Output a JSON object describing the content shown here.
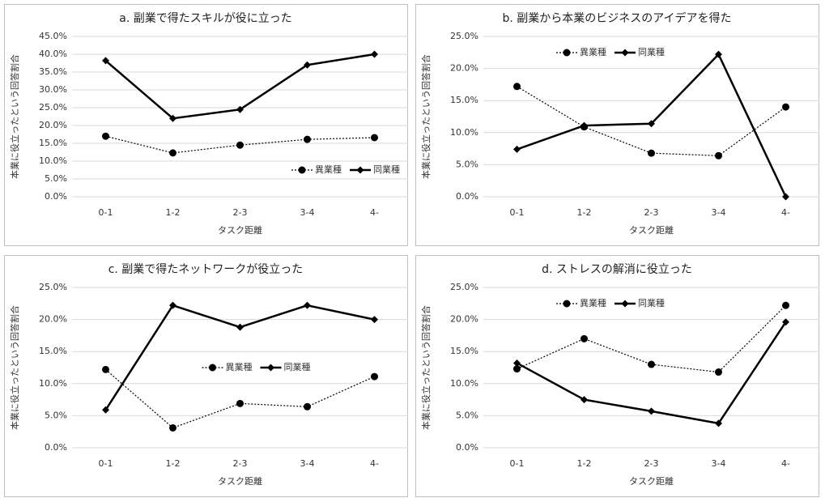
{
  "chart_data": [
    {
      "type": "line",
      "title": "a. 副業で得たスキルが役に立った",
      "x_label": "タスク距離",
      "y_label": "本業に役立ったという回答割合",
      "categories": [
        "0-1",
        "1-2",
        "2-3",
        "3-4",
        "4-"
      ],
      "series": [
        {
          "name": "異業種",
          "color": "#000000",
          "line_style": "dotted",
          "marker": "circle",
          "values": [
            17.0,
            12.3,
            14.5,
            16.1,
            16.6
          ]
        },
        {
          "name": "同業種",
          "color": "#000000",
          "line_style": "solid",
          "marker": "diamond",
          "values": [
            38.2,
            22.0,
            24.5,
            37.0,
            40.0
          ]
        }
      ],
      "ylim": [
        0,
        45
      ],
      "yticks": [
        {
          "value": 0,
          "label": "0.0%"
        },
        {
          "value": 5,
          "label": "5.0%"
        },
        {
          "value": 10,
          "label": "10.0%"
        },
        {
          "value": 15,
          "label": "15.0%"
        },
        {
          "value": 20,
          "label": "20.0%"
        },
        {
          "value": 25,
          "label": "25.0%"
        },
        {
          "value": 30,
          "label": "30.0%"
        },
        {
          "value": 35,
          "label": "35.0%"
        },
        {
          "value": 40,
          "label": "40.0%"
        },
        {
          "value": 45,
          "label": "45.0%"
        }
      ],
      "grid": true,
      "legend": "lower right"
    },
    {
      "type": "line",
      "title": "b. 副業から本業のビジネスのアイデアを得た",
      "x_label": "タスク距離",
      "y_label": "本業に役立ったという回答割合",
      "categories": [
        "0-1",
        "1-2",
        "2-3",
        "3-4",
        "4-"
      ],
      "series": [
        {
          "name": "異業種",
          "color": "#000000",
          "line_style": "dotted",
          "marker": "circle",
          "values": [
            17.2,
            10.9,
            6.8,
            6.4,
            14.0
          ]
        },
        {
          "name": "同業種",
          "color": "#000000",
          "line_style": "solid",
          "marker": "diamond",
          "values": [
            7.4,
            11.1,
            11.4,
            22.2,
            0
          ]
        }
      ],
      "ylim": [
        0,
        25
      ],
      "yticks": [
        {
          "value": 0,
          "label": "0.0%"
        },
        {
          "value": 5,
          "label": "5.0%"
        },
        {
          "value": 10,
          "label": "10.0%"
        },
        {
          "value": 15,
          "label": "15.0%"
        },
        {
          "value": 20,
          "label": "20.0%"
        },
        {
          "value": 25,
          "label": "25.0%"
        }
      ],
      "grid": true,
      "legend": "upper left"
    },
    {
      "type": "line",
      "title": "c. 副業で得たネットワークが役立った",
      "x_label": "タスク距離",
      "y_label": "本業に役立ったという回答割合",
      "categories": [
        "0-1",
        "1-2",
        "2-3",
        "3-4",
        "4-"
      ],
      "series": [
        {
          "name": "異業種",
          "color": "#000000",
          "line_style": "dotted",
          "marker": "circle",
          "values": [
            12.2,
            3.1,
            6.9,
            6.4,
            11.1
          ]
        },
        {
          "name": "同業種",
          "color": "#000000",
          "line_style": "solid",
          "marker": "diamond",
          "values": [
            5.9,
            22.2,
            18.8,
            22.2,
            20.0
          ]
        }
      ],
      "ylim": [
        0,
        25
      ],
      "yticks": [
        {
          "value": 0,
          "label": "0.0%"
        },
        {
          "value": 5,
          "label": "5.0%"
        },
        {
          "value": 10,
          "label": "10.0%"
        },
        {
          "value": 15,
          "label": "15.0%"
        },
        {
          "value": 20,
          "label": "20.0%"
        },
        {
          "value": 25,
          "label": "25.0%"
        }
      ],
      "grid": true,
      "legend": "center"
    },
    {
      "type": "line",
      "title": "d. ストレスの解消に役立った",
      "x_label": "タスク距離",
      "y_label": "本業に役立ったという回答割合",
      "categories": [
        "0-1",
        "1-2",
        "2-3",
        "3-4",
        "4-"
      ],
      "series": [
        {
          "name": "異業種",
          "color": "#000000",
          "line_style": "dotted",
          "marker": "circle",
          "values": [
            12.3,
            17.0,
            13.0,
            11.8,
            22.2
          ]
        },
        {
          "name": "同業種",
          "color": "#000000",
          "line_style": "solid",
          "marker": "diamond",
          "values": [
            13.2,
            7.5,
            5.7,
            3.8,
            19.6
          ]
        }
      ],
      "ylim": [
        0,
        25
      ],
      "yticks": [
        {
          "value": 0,
          "label": "0.0%"
        },
        {
          "value": 5,
          "label": "5.0%"
        },
        {
          "value": 10,
          "label": "10.0%"
        },
        {
          "value": 15,
          "label": "15.0%"
        },
        {
          "value": 20,
          "label": "20.0%"
        },
        {
          "value": 25,
          "label": "25.0%"
        }
      ],
      "grid": true,
      "legend": "upper left"
    }
  ]
}
